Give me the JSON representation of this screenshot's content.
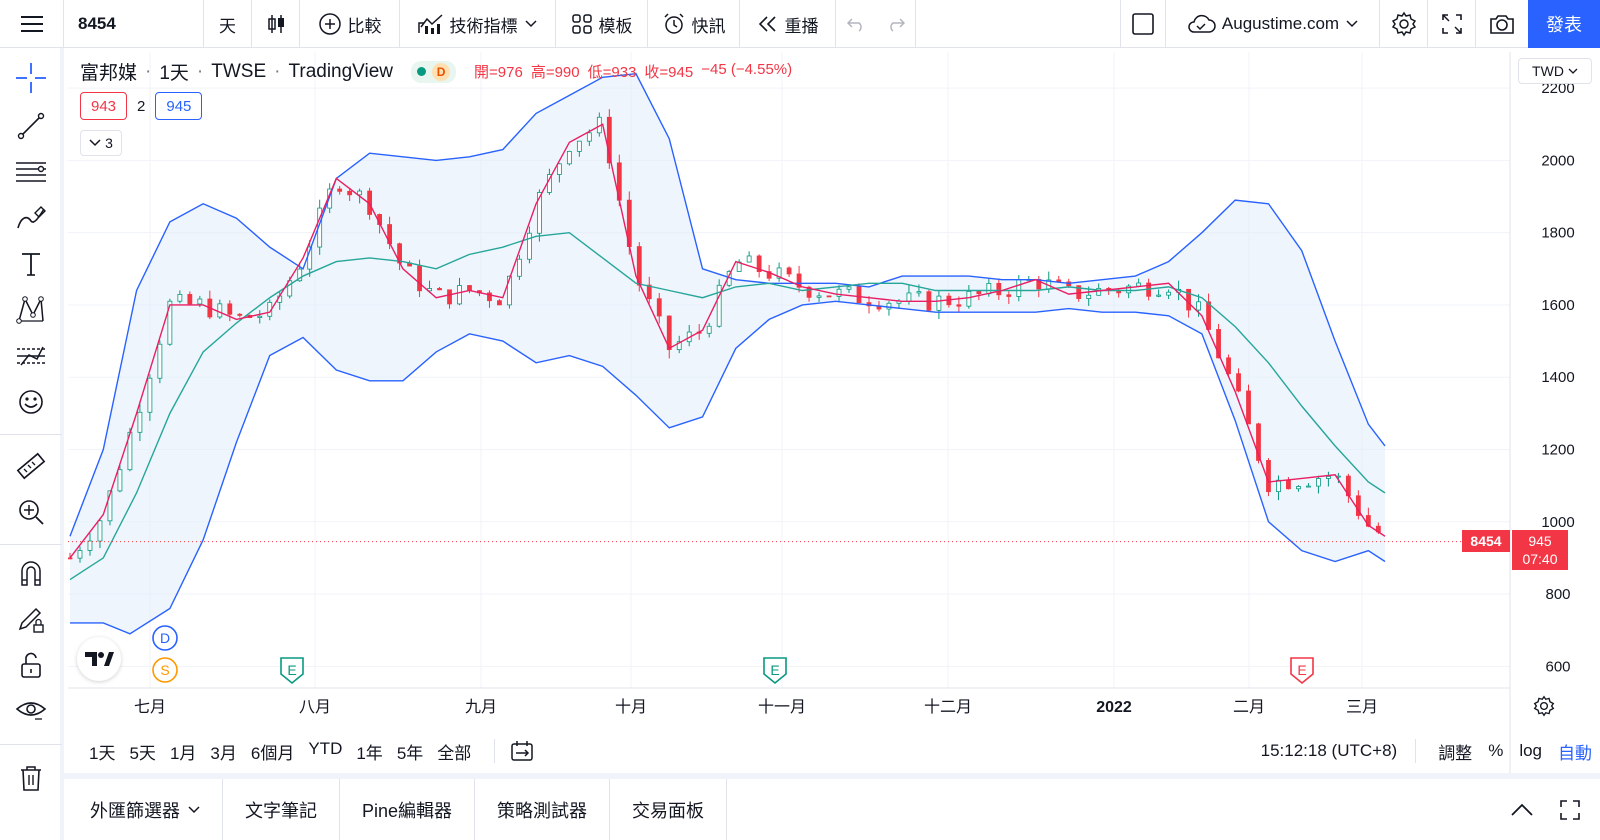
{
  "toolbar": {
    "symbol": "8454",
    "interval": "天",
    "compare_label": "比較",
    "indicators_label": "技術指標",
    "templates_label": "模板",
    "alert_label": "快訊",
    "replay_label": "重播",
    "account_label": "Augustime.com",
    "publish_label": "發表"
  },
  "legend": {
    "name": "富邦媒",
    "interval": "1天",
    "exchange": "TWSE",
    "source": "TradingView",
    "badge_letter": "D",
    "open": "開=976",
    "high": "高=990",
    "low": "低=933",
    "close": "收=945",
    "change": "−45 (−4.55%)"
  },
  "indicators": {
    "red_value": "943",
    "period": "2",
    "blue_value": "945",
    "collapse_count": "3"
  },
  "currency": "TWD",
  "price_tags": {
    "symbol": "8454",
    "last": "945",
    "countdown": "07:40"
  },
  "events": {
    "dividend": "D",
    "split": "S",
    "earnings": "E"
  },
  "ranges": [
    "1天",
    "5天",
    "1月",
    "3月",
    "6個月",
    "YTD",
    "1年",
    "5年",
    "全部"
  ],
  "status": {
    "clock": "15:12:18 (UTC+8)",
    "adjust": "調整",
    "percent": "%",
    "log": "log",
    "auto": "自動"
  },
  "bottom_tabs": {
    "screener": "外匯篩選器",
    "notes": "文字筆記",
    "pine": "Pine編輯器",
    "tester": "策略測試器",
    "trading": "交易面板"
  },
  "colors": {
    "up": "#089981",
    "down": "#f23645",
    "band": "#2962ff",
    "band_fill": "#e3effa",
    "basis": "#26a69a",
    "ma_fast": "#e91e63",
    "accent": "#2962ff"
  },
  "chart_data": {
    "type": "candlestick",
    "y_ticks": [
      600,
      800,
      1000,
      1200,
      1400,
      1600,
      1800,
      2000,
      2200
    ],
    "x_ticks": [
      "七月",
      "八月",
      "九月",
      "十月",
      "十一月",
      "十二月",
      "2022",
      "二月",
      "三月"
    ],
    "ylim": [
      540,
      2300
    ],
    "last_price": 945,
    "bb_upper": [
      [
        0,
        960
      ],
      [
        10,
        1200
      ],
      [
        20,
        1640
      ],
      [
        30,
        1830
      ],
      [
        40,
        1880
      ],
      [
        50,
        1840
      ],
      [
        60,
        1760
      ],
      [
        70,
        1700
      ],
      [
        80,
        1950
      ],
      [
        90,
        2020
      ],
      [
        100,
        2010
      ],
      [
        110,
        2000
      ],
      [
        120,
        2010
      ],
      [
        130,
        2030
      ],
      [
        140,
        2130
      ],
      [
        150,
        2180
      ],
      [
        160,
        2230
      ],
      [
        170,
        2240
      ],
      [
        180,
        2060
      ],
      [
        190,
        1700
      ],
      [
        200,
        1670
      ],
      [
        210,
        1660
      ],
      [
        220,
        1660
      ],
      [
        230,
        1660
      ],
      [
        240,
        1650
      ],
      [
        250,
        1680
      ],
      [
        260,
        1680
      ],
      [
        270,
        1680
      ],
      [
        280,
        1670
      ],
      [
        290,
        1670
      ],
      [
        300,
        1660
      ],
      [
        310,
        1670
      ],
      [
        320,
        1680
      ],
      [
        330,
        1720
      ],
      [
        340,
        1800
      ],
      [
        350,
        1890
      ],
      [
        360,
        1880
      ],
      [
        370,
        1750
      ],
      [
        380,
        1500
      ],
      [
        390,
        1270
      ],
      [
        395,
        1210
      ]
    ],
    "bb_lower": [
      [
        0,
        720
      ],
      [
        10,
        720
      ],
      [
        18,
        690
      ],
      [
        30,
        760
      ],
      [
        40,
        950
      ],
      [
        50,
        1220
      ],
      [
        60,
        1460
      ],
      [
        70,
        1510
      ],
      [
        80,
        1420
      ],
      [
        90,
        1390
      ],
      [
        100,
        1390
      ],
      [
        110,
        1470
      ],
      [
        120,
        1520
      ],
      [
        130,
        1500
      ],
      [
        140,
        1440
      ],
      [
        150,
        1460
      ],
      [
        160,
        1430
      ],
      [
        170,
        1350
      ],
      [
        180,
        1260
      ],
      [
        190,
        1290
      ],
      [
        200,
        1480
      ],
      [
        210,
        1560
      ],
      [
        220,
        1600
      ],
      [
        230,
        1610
      ],
      [
        240,
        1600
      ],
      [
        250,
        1590
      ],
      [
        260,
        1580
      ],
      [
        270,
        1580
      ],
      [
        280,
        1580
      ],
      [
        290,
        1580
      ],
      [
        300,
        1590
      ],
      [
        310,
        1580
      ],
      [
        320,
        1580
      ],
      [
        330,
        1570
      ],
      [
        340,
        1520
      ],
      [
        350,
        1280
      ],
      [
        360,
        1000
      ],
      [
        370,
        920
      ],
      [
        380,
        890
      ],
      [
        390,
        920
      ],
      [
        395,
        890
      ]
    ],
    "bb_basis": [
      [
        0,
        840
      ],
      [
        10,
        900
      ],
      [
        20,
        1080
      ],
      [
        30,
        1300
      ],
      [
        40,
        1470
      ],
      [
        50,
        1550
      ],
      [
        60,
        1620
      ],
      [
        70,
        1680
      ],
      [
        80,
        1720
      ],
      [
        90,
        1730
      ],
      [
        100,
        1720
      ],
      [
        110,
        1700
      ],
      [
        120,
        1740
      ],
      [
        130,
        1760
      ],
      [
        140,
        1790
      ],
      [
        150,
        1800
      ],
      [
        160,
        1730
      ],
      [
        170,
        1660
      ],
      [
        180,
        1640
      ],
      [
        190,
        1620
      ],
      [
        200,
        1650
      ],
      [
        210,
        1660
      ],
      [
        220,
        1640
      ],
      [
        230,
        1650
      ],
      [
        240,
        1660
      ],
      [
        250,
        1660
      ],
      [
        260,
        1640
      ],
      [
        270,
        1640
      ],
      [
        280,
        1640
      ],
      [
        290,
        1640
      ],
      [
        300,
        1650
      ],
      [
        310,
        1640
      ],
      [
        320,
        1640
      ],
      [
        330,
        1650
      ],
      [
        340,
        1620
      ],
      [
        350,
        1540
      ],
      [
        360,
        1440
      ],
      [
        370,
        1320
      ],
      [
        380,
        1210
      ],
      [
        390,
        1110
      ],
      [
        395,
        1080
      ]
    ],
    "ma_fast": [
      [
        0,
        900
      ],
      [
        10,
        1020
      ],
      [
        20,
        1300
      ],
      [
        30,
        1600
      ],
      [
        40,
        1600
      ],
      [
        50,
        1560
      ],
      [
        60,
        1580
      ],
      [
        70,
        1730
      ],
      [
        80,
        1950
      ],
      [
        90,
        1880
      ],
      [
        100,
        1700
      ],
      [
        110,
        1620
      ],
      [
        120,
        1640
      ],
      [
        130,
        1620
      ],
      [
        140,
        1880
      ],
      [
        150,
        2050
      ],
      [
        160,
        2100
      ],
      [
        170,
        1680
      ],
      [
        180,
        1480
      ],
      [
        190,
        1530
      ],
      [
        200,
        1720
      ],
      [
        210,
        1690
      ],
      [
        220,
        1650
      ],
      [
        230,
        1630
      ],
      [
        240,
        1620
      ],
      [
        250,
        1610
      ],
      [
        260,
        1610
      ],
      [
        270,
        1620
      ],
      [
        280,
        1640
      ],
      [
        290,
        1670
      ],
      [
        300,
        1630
      ],
      [
        310,
        1640
      ],
      [
        320,
        1650
      ],
      [
        330,
        1660
      ],
      [
        340,
        1570
      ],
      [
        350,
        1360
      ],
      [
        360,
        1110
      ],
      [
        370,
        1120
      ],
      [
        380,
        1130
      ],
      [
        390,
        990
      ],
      [
        395,
        960
      ]
    ]
  }
}
